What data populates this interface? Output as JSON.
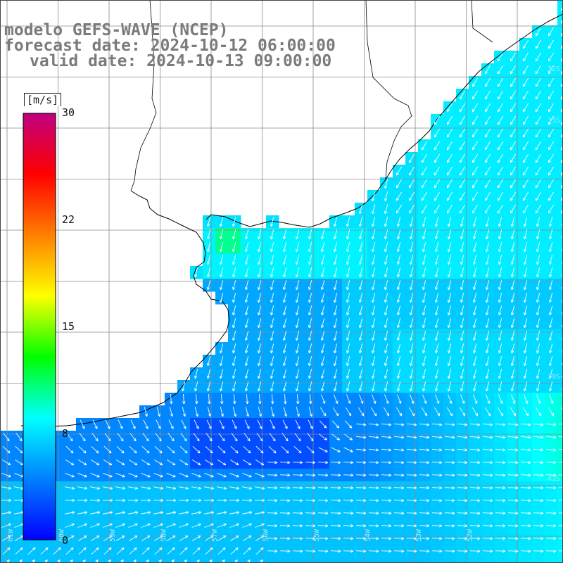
{
  "title": {
    "line1": "modelo GEFS-WAVE (NCEP)",
    "line2": "forecast date: 2024-10-12 06:00:00",
    "line3": "valid date: 2024-10-13 09:00:00"
  },
  "colorbar": {
    "unit": "[m/s]",
    "min": 0,
    "max": 30,
    "tick_labels": [
      "30",
      "22",
      "15",
      "8",
      "0"
    ],
    "tick_values": [
      30,
      22,
      15,
      8,
      0
    ],
    "colors": [
      "#0000ff",
      "#0080ff",
      "#00ffff",
      "#00ff00",
      "#ffff00",
      "#ff8000",
      "#ff0000",
      "#c00080"
    ]
  },
  "map": {
    "field": "wind speed and direction",
    "land_color": "#ffffff",
    "grid_color": "#8a8a8a",
    "coast_color": "#000000",
    "arrow_color": "#ffffff",
    "lat_labels": [
      "32S",
      "33S",
      "39S",
      "41S"
    ],
    "lon_labels": [
      "61W",
      "60W",
      "59W",
      "58W",
      "57W",
      "56W",
      "55W",
      "54W",
      "53W",
      "52W"
    ]
  }
}
